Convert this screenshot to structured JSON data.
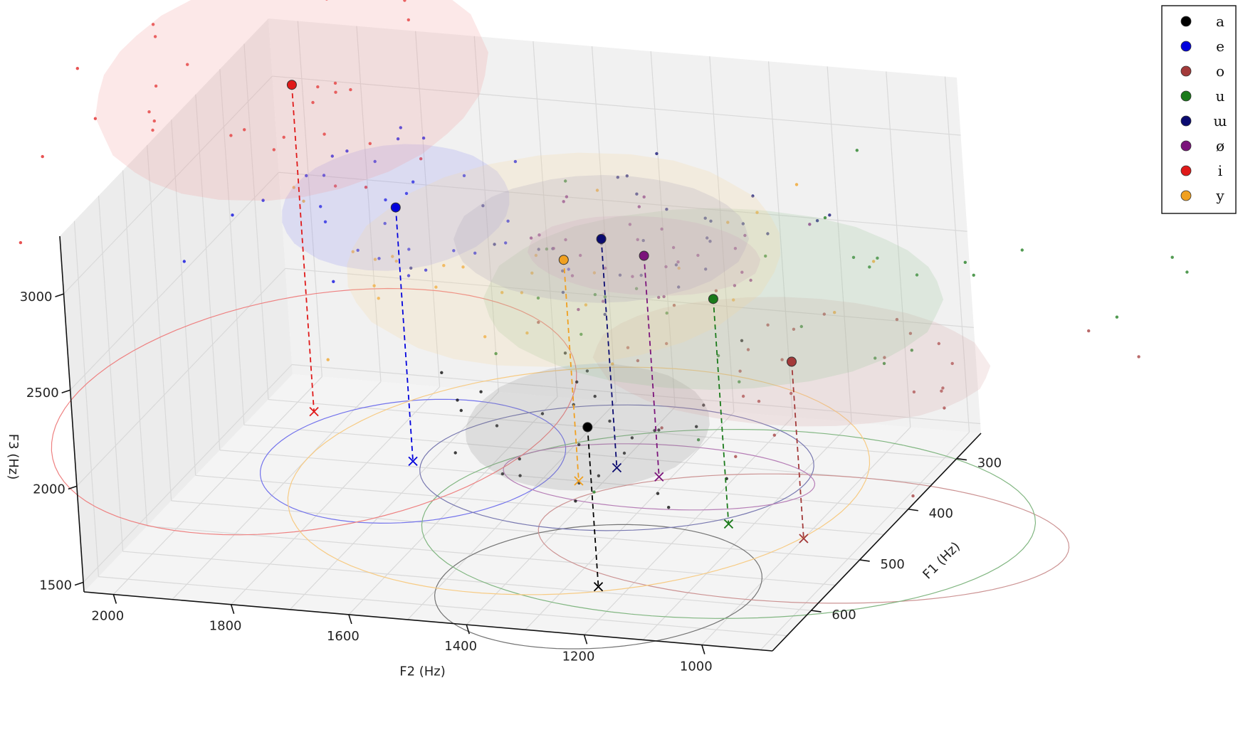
{
  "chart_data": {
    "type": "scatter",
    "projection": "3d",
    "title": "",
    "xlabel": "F2 (Hz)",
    "ylabel": "F1 (Hz)",
    "zlabel": "F3 (Hz)",
    "xlim": [
      2050,
      880
    ],
    "ylim": [
      250,
      680
    ],
    "zlim": [
      1450,
      3300
    ],
    "x_ticks": [
      2000,
      1800,
      1600,
      1400,
      1200,
      1000
    ],
    "y_ticks": [
      300,
      400,
      500,
      600
    ],
    "z_ticks": [
      1500,
      2000,
      2500,
      3000
    ],
    "grid": true,
    "legend_position": "top-right",
    "series": [
      {
        "name": "a",
        "color": "#000000",
        "mean": {
          "F2": 1250,
          "F1": 590,
          "F3": 2280
        },
        "std": {
          "F2": 130,
          "F1": 60,
          "F3": 150
        }
      },
      {
        "name": "e",
        "color": "#0000dd",
        "mean": {
          "F2": 1730,
          "F1": 390,
          "F3": 2770
        },
        "std": {
          "F2": 120,
          "F1": 60,
          "F3": 150
        }
      },
      {
        "name": "o",
        "color": "#a33a3a",
        "mean": {
          "F2": 1000,
          "F1": 470,
          "F3": 2370
        },
        "std": {
          "F2": 220,
          "F1": 60,
          "F3": 150
        }
      },
      {
        "name": "u",
        "color": "#1a7a1a",
        "mean": {
          "F2": 1140,
          "F1": 455,
          "F3": 2620
        },
        "std": {
          "F2": 250,
          "F1": 90,
          "F3": 200
        }
      },
      {
        "name": "ɯ",
        "color": "#0a0a70",
        "mean": {
          "F2": 1400,
          "F1": 370,
          "F3": 2640
        },
        "std": {
          "F2": 160,
          "F1": 60,
          "F3": 150
        }
      },
      {
        "name": "ø",
        "color": "#7b147b",
        "mean": {
          "F2": 1320,
          "F1": 380,
          "F3": 2600
        },
        "std": {
          "F2": 130,
          "F1": 30,
          "F3": 110
        }
      },
      {
        "name": "i",
        "color": "#e01919",
        "mean": {
          "F2": 1960,
          "F1": 315,
          "F3": 3150
        },
        "std": {
          "F2": 200,
          "F1": 120,
          "F3": 250
        }
      },
      {
        "name": "y",
        "color": "#f0a020",
        "mean": {
          "F2": 1440,
          "F1": 400,
          "F3": 2600
        },
        "std": {
          "F2": 230,
          "F1": 110,
          "F3": 230
        }
      }
    ]
  }
}
